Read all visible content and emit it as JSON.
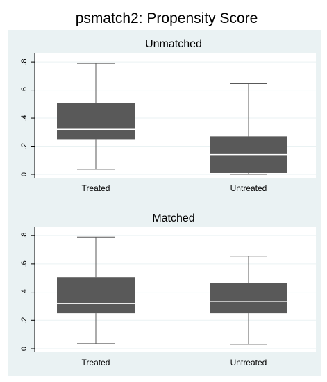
{
  "chart_data": {
    "type": "boxplot",
    "title": "psmatch2: Propensity Score",
    "ylim": [
      0,
      0.85
    ],
    "yticks": [
      0,
      0.2,
      0.4,
      0.6,
      0.8
    ],
    "ytick_labels": [
      "0",
      ".2",
      ".4",
      ".6",
      ".8"
    ],
    "grid": true,
    "colors": {
      "box": "#595959",
      "median": "#ffffff",
      "whisker": "#595959",
      "panel_bg": "#eaf2f3",
      "plot_bg": "#ffffff",
      "gridline": "#eaf2f3"
    },
    "panels": [
      {
        "title": "Unmatched",
        "categories": [
          "Treated",
          "Untreated"
        ],
        "boxes": [
          {
            "category": "Treated",
            "min": 0.035,
            "q1": 0.25,
            "median": 0.32,
            "q3": 0.505,
            "max": 0.79
          },
          {
            "category": "Untreated",
            "min": 0.0,
            "q1": 0.01,
            "median": 0.14,
            "q3": 0.27,
            "max": 0.645
          }
        ]
      },
      {
        "title": "Matched",
        "categories": [
          "Treated",
          "Untreated"
        ],
        "boxes": [
          {
            "category": "Treated",
            "min": 0.035,
            "q1": 0.25,
            "median": 0.32,
            "q3": 0.505,
            "max": 0.79
          },
          {
            "category": "Untreated",
            "min": 0.03,
            "q1": 0.25,
            "median": 0.335,
            "q3": 0.465,
            "max": 0.655
          }
        ]
      }
    ]
  }
}
